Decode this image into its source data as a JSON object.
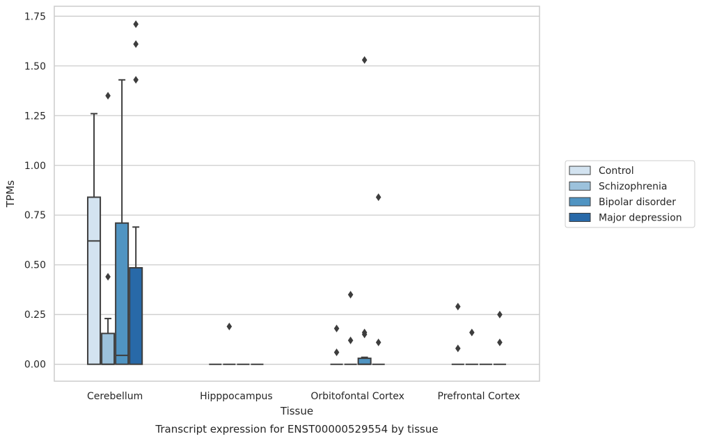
{
  "chart_data": {
    "type": "box",
    "title": "",
    "caption": "Transcript expression for ENST00000529554 by tissue",
    "xlabel": "Tissue",
    "ylabel": "TPMs",
    "ylim": [
      -0.085,
      1.8
    ],
    "yticks": [
      0.0,
      0.25,
      0.5,
      0.75,
      1.0,
      1.25,
      1.5,
      1.75
    ],
    "ytick_labels": [
      "0.00",
      "0.25",
      "0.50",
      "0.75",
      "1.00",
      "1.25",
      "1.50",
      "1.75"
    ],
    "grid": "horizontal",
    "legend_position": "right",
    "categories": [
      "Cerebellum",
      "Hipppocampus",
      "Orbitofontal Cortex",
      "Prefrontal Cortex"
    ],
    "series": [
      {
        "name": "Control",
        "color": "#d3e3f0",
        "boxes": [
          {
            "whislo": 0,
            "q1": 0,
            "med": 0.62,
            "q3": 0.84,
            "whishi": 1.26,
            "fliers": []
          },
          {
            "whislo": 0,
            "q1": 0,
            "med": 0,
            "q3": 0,
            "whishi": 0,
            "fliers": []
          },
          {
            "whislo": 0,
            "q1": 0,
            "med": 0,
            "q3": 0,
            "whishi": 0,
            "fliers": [
              0.06,
              0.18
            ]
          },
          {
            "whislo": 0,
            "q1": 0,
            "med": 0,
            "q3": 0,
            "whishi": 0,
            "fliers": [
              0.08,
              0.29
            ]
          }
        ]
      },
      {
        "name": "Schizophrenia",
        "color": "#9cc2dc",
        "boxes": [
          {
            "whislo": 0,
            "q1": 0,
            "med": 0,
            "q3": 0.155,
            "whishi": 0.23,
            "fliers": [
              0.44,
              1.35
            ]
          },
          {
            "whislo": 0,
            "q1": 0,
            "med": 0,
            "q3": 0,
            "whishi": 0,
            "fliers": [
              0.19
            ]
          },
          {
            "whislo": 0,
            "q1": 0,
            "med": 0,
            "q3": 0,
            "whishi": 0,
            "fliers": [
              0.12,
              0.35
            ]
          },
          {
            "whislo": 0,
            "q1": 0,
            "med": 0,
            "q3": 0,
            "whishi": 0,
            "fliers": [
              0.16
            ]
          }
        ]
      },
      {
        "name": "Bipolar disorder",
        "color": "#5094c2",
        "boxes": [
          {
            "whislo": 0,
            "q1": 0,
            "med": 0.045,
            "q3": 0.71,
            "whishi": 1.43,
            "fliers": []
          },
          {
            "whislo": 0,
            "q1": 0,
            "med": 0,
            "q3": 0,
            "whishi": 0,
            "fliers": []
          },
          {
            "whislo": 0,
            "q1": 0,
            "med": 0,
            "q3": 0.03,
            "whishi": 0.035,
            "fliers": [
              0.15,
              0.16,
              1.53
            ]
          },
          {
            "whislo": 0,
            "q1": 0,
            "med": 0,
            "q3": 0,
            "whishi": 0,
            "fliers": []
          }
        ]
      },
      {
        "name": "Major depression",
        "color": "#2869a8",
        "boxes": [
          {
            "whislo": 0,
            "q1": 0,
            "med": 0.485,
            "q3": 0.485,
            "whishi": 0.69,
            "fliers": [
              1.43,
              1.61,
              1.71
            ]
          },
          {
            "whislo": 0,
            "q1": 0,
            "med": 0,
            "q3": 0,
            "whishi": 0,
            "fliers": []
          },
          {
            "whislo": 0,
            "q1": 0,
            "med": 0,
            "q3": 0,
            "whishi": 0,
            "fliers": [
              0.11,
              0.84
            ]
          },
          {
            "whislo": 0,
            "q1": 0,
            "med": 0,
            "q3": 0,
            "whishi": 0,
            "fliers": [
              0.11,
              0.25
            ]
          }
        ]
      }
    ]
  }
}
